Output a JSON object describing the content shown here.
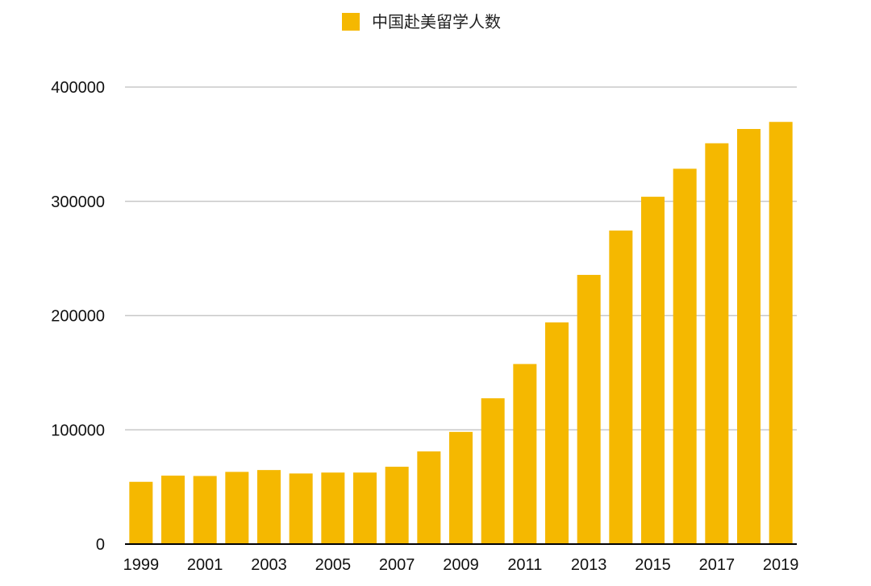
{
  "chart_data": {
    "type": "bar",
    "title": "",
    "xlabel": "",
    "ylabel": "",
    "legend": {
      "position": "top-center",
      "label": "中国赴美留学人数"
    },
    "grid": true,
    "categories": [
      "1999",
      "2000",
      "2001",
      "2002",
      "2003",
      "2004",
      "2005",
      "2006",
      "2007",
      "2008",
      "2009",
      "2010",
      "2011",
      "2012",
      "2013",
      "2014",
      "2015",
      "2016",
      "2017",
      "2018",
      "2019"
    ],
    "x_tick_labels": [
      "1999",
      "2001",
      "2003",
      "2005",
      "2007",
      "2009",
      "2011",
      "2013",
      "2015",
      "2017",
      "2019"
    ],
    "y_ticks": [
      0,
      100000,
      200000,
      300000,
      400000
    ],
    "y_tick_labels": [
      "0",
      "100000",
      "200000",
      "300000",
      "400000"
    ],
    "ylim": [
      0,
      400000
    ],
    "series": [
      {
        "name": "中国赴美留学人数",
        "color": "#F5B800",
        "values": [
          54500,
          59900,
          59600,
          63200,
          64800,
          61800,
          62600,
          62600,
          67700,
          81100,
          98200,
          127600,
          157600,
          194000,
          235600,
          274400,
          304000,
          328500,
          350800,
          363300,
          369500
        ]
      }
    ],
    "colors": {
      "bar": "#F5B800",
      "grid": "#c8c8c8",
      "axis": "#000000"
    }
  }
}
